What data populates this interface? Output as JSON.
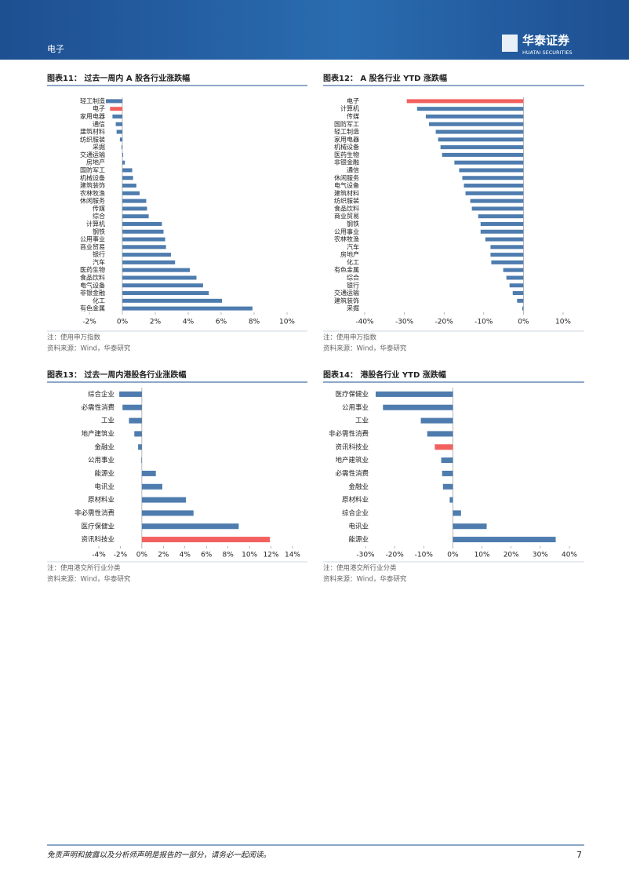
{
  "header": {
    "section": "电子",
    "logo_cn": "华泰证券",
    "logo_en": "HUATAI SECURITIES"
  },
  "chart_data": [
    {
      "type": "bar",
      "orientation": "horizontal",
      "title": "图表11：  过去一周内 A 股各行业涨跌幅",
      "categories": [
        "轻工制造",
        "电子",
        "家用电器",
        "通信",
        "建筑材料",
        "纺织服装",
        "采掘",
        "交通运输",
        "房地产",
        "国防军工",
        "机械设备",
        "建筑装饰",
        "农林牧渔",
        "休闲服务",
        "传媒",
        "综合",
        "计算机",
        "钢铁",
        "公用事业",
        "商业贸易",
        "银行",
        "汽车",
        "医药生物",
        "食品饮料",
        "电气设备",
        "非银金融",
        "化工",
        "有色金属"
      ],
      "values": [
        -1.0,
        -0.75,
        -0.6,
        -0.4,
        -0.35,
        -0.15,
        -0.05,
        0.05,
        0.15,
        0.6,
        0.65,
        0.85,
        1.05,
        1.45,
        1.5,
        1.6,
        2.4,
        2.5,
        2.6,
        2.65,
        2.95,
        3.2,
        4.1,
        4.5,
        4.9,
        5.25,
        6.05,
        7.9
      ],
      "colors": [
        "#4f7cae",
        "#f2615f",
        "#4f7cae",
        "#4f7cae",
        "#4f7cae",
        "#4f7cae",
        "#4f7cae",
        "#4f7cae",
        "#4f7cae",
        "#4f7cae",
        "#4f7cae",
        "#4f7cae",
        "#4f7cae",
        "#4f7cae",
        "#4f7cae",
        "#4f7cae",
        "#4f7cae",
        "#4f7cae",
        "#4f7cae",
        "#4f7cae",
        "#4f7cae",
        "#4f7cae",
        "#4f7cae",
        "#4f7cae",
        "#4f7cae",
        "#4f7cae",
        "#4f7cae",
        "#4f7cae"
      ],
      "xlim": [
        -2,
        10
      ],
      "xticks": [
        {
          "value": -2,
          "label": "-2%"
        },
        {
          "value": 0,
          "label": "0%"
        },
        {
          "value": 2,
          "label": "2%"
        },
        {
          "value": 4,
          "label": "4%"
        },
        {
          "value": 6,
          "label": "6%"
        },
        {
          "value": 8,
          "label": "8%"
        },
        {
          "value": 10,
          "label": "10%"
        }
      ],
      "note": "注：使用申万指数",
      "source": "资料来源：Wind，华泰研究"
    },
    {
      "type": "bar",
      "orientation": "horizontal",
      "title": "图表12：  A 股各行业 YTD 涨跌幅",
      "categories": [
        "电子",
        "计算机",
        "传媒",
        "国防军工",
        "轻工制造",
        "家用电器",
        "机械设备",
        "医药生物",
        "非银金融",
        "通信",
        "休闲服务",
        "电气设备",
        "建筑材料",
        "纺织服装",
        "食品饮料",
        "商业贸易",
        "钢铁",
        "公用事业",
        "农林牧渔",
        "汽车",
        "房地产",
        "化工",
        "有色金属",
        "综合",
        "银行",
        "交通运输",
        "建筑装饰",
        "采掘"
      ],
      "values": [
        -29.4,
        -26.8,
        -24.6,
        -23.8,
        -22.1,
        -21.5,
        -20.9,
        -20.5,
        -17.4,
        -16.2,
        -15.4,
        -15.0,
        -14.6,
        -13.4,
        -13.0,
        -11.4,
        -10.8,
        -10.8,
        -9.6,
        -8.3,
        -8.3,
        -8.1,
        -5.1,
        -4.3,
        -3.5,
        -2.7,
        -1.6,
        -0.3
      ],
      "colors": [
        "#f2615f",
        "#4f7cae",
        "#4f7cae",
        "#4f7cae",
        "#4f7cae",
        "#4f7cae",
        "#4f7cae",
        "#4f7cae",
        "#4f7cae",
        "#4f7cae",
        "#4f7cae",
        "#4f7cae",
        "#4f7cae",
        "#4f7cae",
        "#4f7cae",
        "#4f7cae",
        "#4f7cae",
        "#4f7cae",
        "#4f7cae",
        "#4f7cae",
        "#4f7cae",
        "#4f7cae",
        "#4f7cae",
        "#4f7cae",
        "#4f7cae",
        "#4f7cae",
        "#4f7cae",
        "#4f7cae"
      ],
      "xlim": [
        -40,
        10
      ],
      "xticks": [
        {
          "value": -40,
          "label": "-40%"
        },
        {
          "value": -30,
          "label": "-30%"
        },
        {
          "value": -20,
          "label": "-20%"
        },
        {
          "value": -10,
          "label": "-10%"
        },
        {
          "value": 0,
          "label": "0%"
        },
        {
          "value": 10,
          "label": "10%"
        }
      ],
      "note": "注：使用申万指数",
      "source": "资料来源：Wind，华泰研究"
    },
    {
      "type": "bar",
      "orientation": "horizontal",
      "title": "图表13：  过去一周内港股各行业涨跌幅",
      "categories": [
        "综合企业",
        "必需性消费",
        "工业",
        "地产建筑业",
        "金融业",
        "公用事业",
        "能源业",
        "电讯业",
        "原材料业",
        "非必需性消费",
        "医疗保健业",
        "资讯科技业"
      ],
      "values": [
        -2.1,
        -1.8,
        -1.2,
        -0.7,
        -0.35,
        -0.05,
        1.3,
        1.9,
        4.1,
        4.8,
        9.0,
        11.9
      ],
      "colors": [
        "#4f7cae",
        "#4f7cae",
        "#4f7cae",
        "#4f7cae",
        "#4f7cae",
        "#4f7cae",
        "#4f7cae",
        "#4f7cae",
        "#4f7cae",
        "#4f7cae",
        "#4f7cae",
        "#f2615f"
      ],
      "xlim": [
        -4,
        14
      ],
      "xticks": [
        {
          "value": -4,
          "label": "-4%"
        },
        {
          "value": -2,
          "label": "-2%"
        },
        {
          "value": 0,
          "label": "0%"
        },
        {
          "value": 2,
          "label": "2%"
        },
        {
          "value": 4,
          "label": "4%"
        },
        {
          "value": 6,
          "label": "6%"
        },
        {
          "value": 8,
          "label": "8%"
        },
        {
          "value": 10,
          "label": "10%"
        },
        {
          "value": 12,
          "label": "12%"
        },
        {
          "value": 14,
          "label": "14%"
        }
      ],
      "note": "注：使用港交所行业分类",
      "source": "资料来源：Wind，华泰研究"
    },
    {
      "type": "bar",
      "orientation": "horizontal",
      "title": "图表14：  港股各行业 YTD 涨跌幅",
      "categories": [
        "医疗保健业",
        "公用事业",
        "工业",
        "非必需性消费",
        "资讯科技业",
        "地产建筑业",
        "必需性消费",
        "金融业",
        "原材料业",
        "综合企业",
        "电讯业",
        "能源业"
      ],
      "values": [
        -26.5,
        -24.0,
        -11.0,
        -8.8,
        -6.2,
        -4.0,
        -3.7,
        -3.4,
        -1.1,
        2.8,
        11.6,
        35.3
      ],
      "colors": [
        "#4f7cae",
        "#4f7cae",
        "#4f7cae",
        "#4f7cae",
        "#f2615f",
        "#4f7cae",
        "#4f7cae",
        "#4f7cae",
        "#4f7cae",
        "#4f7cae",
        "#4f7cae",
        "#4f7cae"
      ],
      "xlim": [
        -30,
        40
      ],
      "xticks": [
        {
          "value": -30,
          "label": "-30%"
        },
        {
          "value": -20,
          "label": "-20%"
        },
        {
          "value": -10,
          "label": "-10%"
        },
        {
          "value": 0,
          "label": "0%"
        },
        {
          "value": 10,
          "label": "10%"
        },
        {
          "value": 20,
          "label": "20%"
        },
        {
          "value": 30,
          "label": "30%"
        },
        {
          "value": 40,
          "label": "40%"
        }
      ],
      "note": "注：使用港交所行业分类",
      "source": "资料来源：Wind，华泰研究"
    }
  ],
  "footer": {
    "disclaimer": "免责声明和披露以及分析师声明是报告的一部分，请务必一起阅读。",
    "page": 7
  }
}
